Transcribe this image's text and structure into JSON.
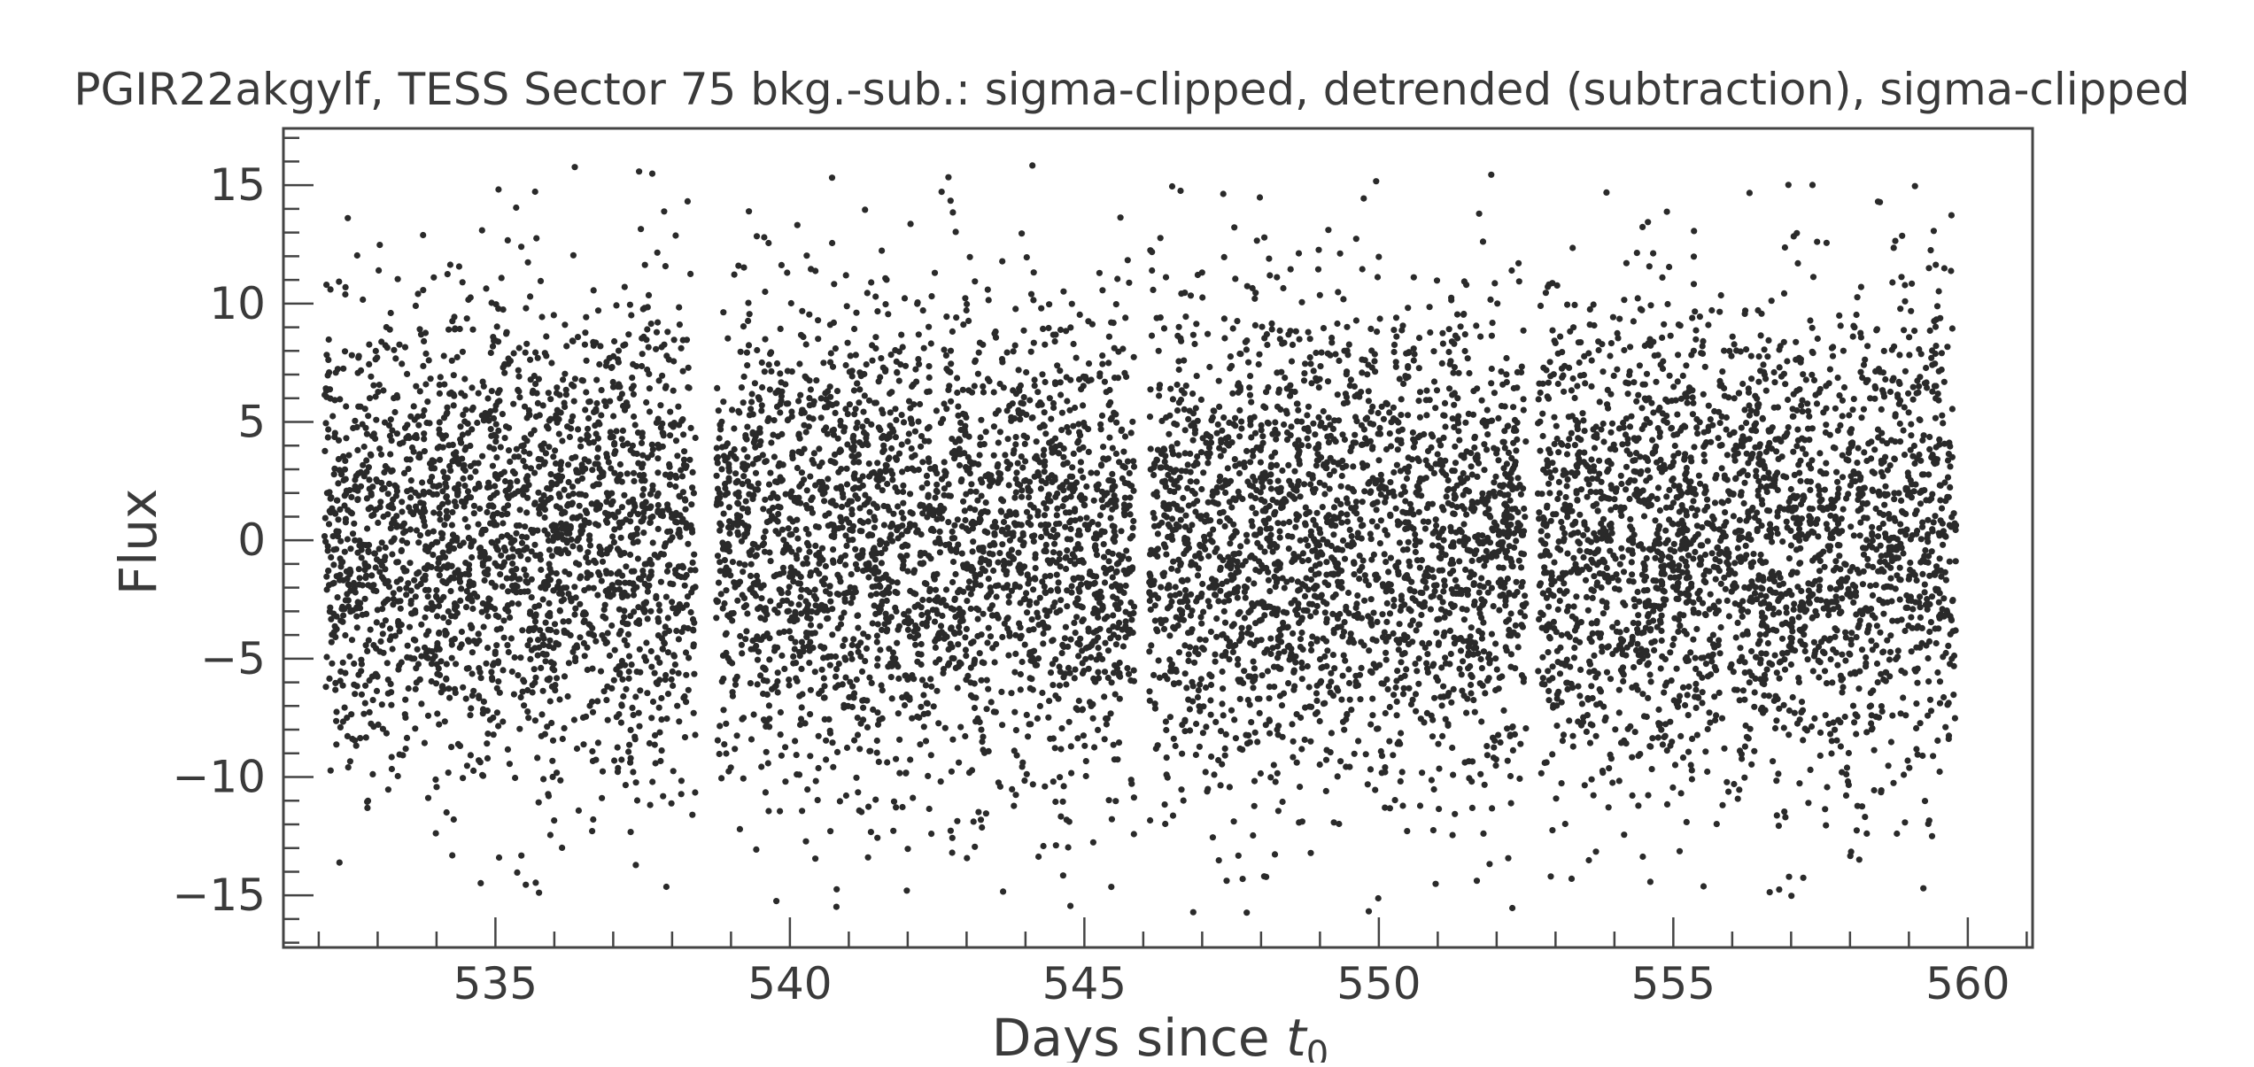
{
  "chart_data": {
    "type": "scatter",
    "title": "PGIR22akgylf, TESS Sector 75 bkg.-sub.: sigma-clipped, detrended (subtraction), sigma-clipped",
    "xlabel_main": "Days since ",
    "xlabel_var": "t",
    "xlabel_sub": "0",
    "ylabel": "Flux",
    "xlim": [
      531.4,
      561.1
    ],
    "ylim": [
      -17.2,
      17.4
    ],
    "x_ticks": [
      535,
      540,
      545,
      550,
      555,
      560
    ],
    "x_tick_labels": [
      "535",
      "540",
      "545",
      "550",
      "555",
      "560"
    ],
    "y_ticks": [
      15,
      10,
      5,
      0,
      -5,
      -10,
      -15
    ],
    "y_tick_labels": [
      "15",
      "10",
      "5",
      "0",
      "−5",
      "−10",
      "−15"
    ],
    "x_minor_step": 1,
    "y_minor_step": 1,
    "grid": false,
    "legend": "none",
    "marker_color": "#2a2a2a",
    "segments": [
      {
        "x_start": 532.1,
        "x_end": 538.4,
        "points": 2300
      },
      {
        "x_start": 538.75,
        "x_end": 545.85,
        "points": 2600
      },
      {
        "x_start": 546.1,
        "x_end": 552.5,
        "points": 2350
      },
      {
        "x_start": 552.7,
        "x_end": 559.8,
        "points": 2600
      }
    ],
    "y_center": 0,
    "y_spread": 5.2,
    "y_clip": [
      -15.8,
      15.9
    ]
  }
}
